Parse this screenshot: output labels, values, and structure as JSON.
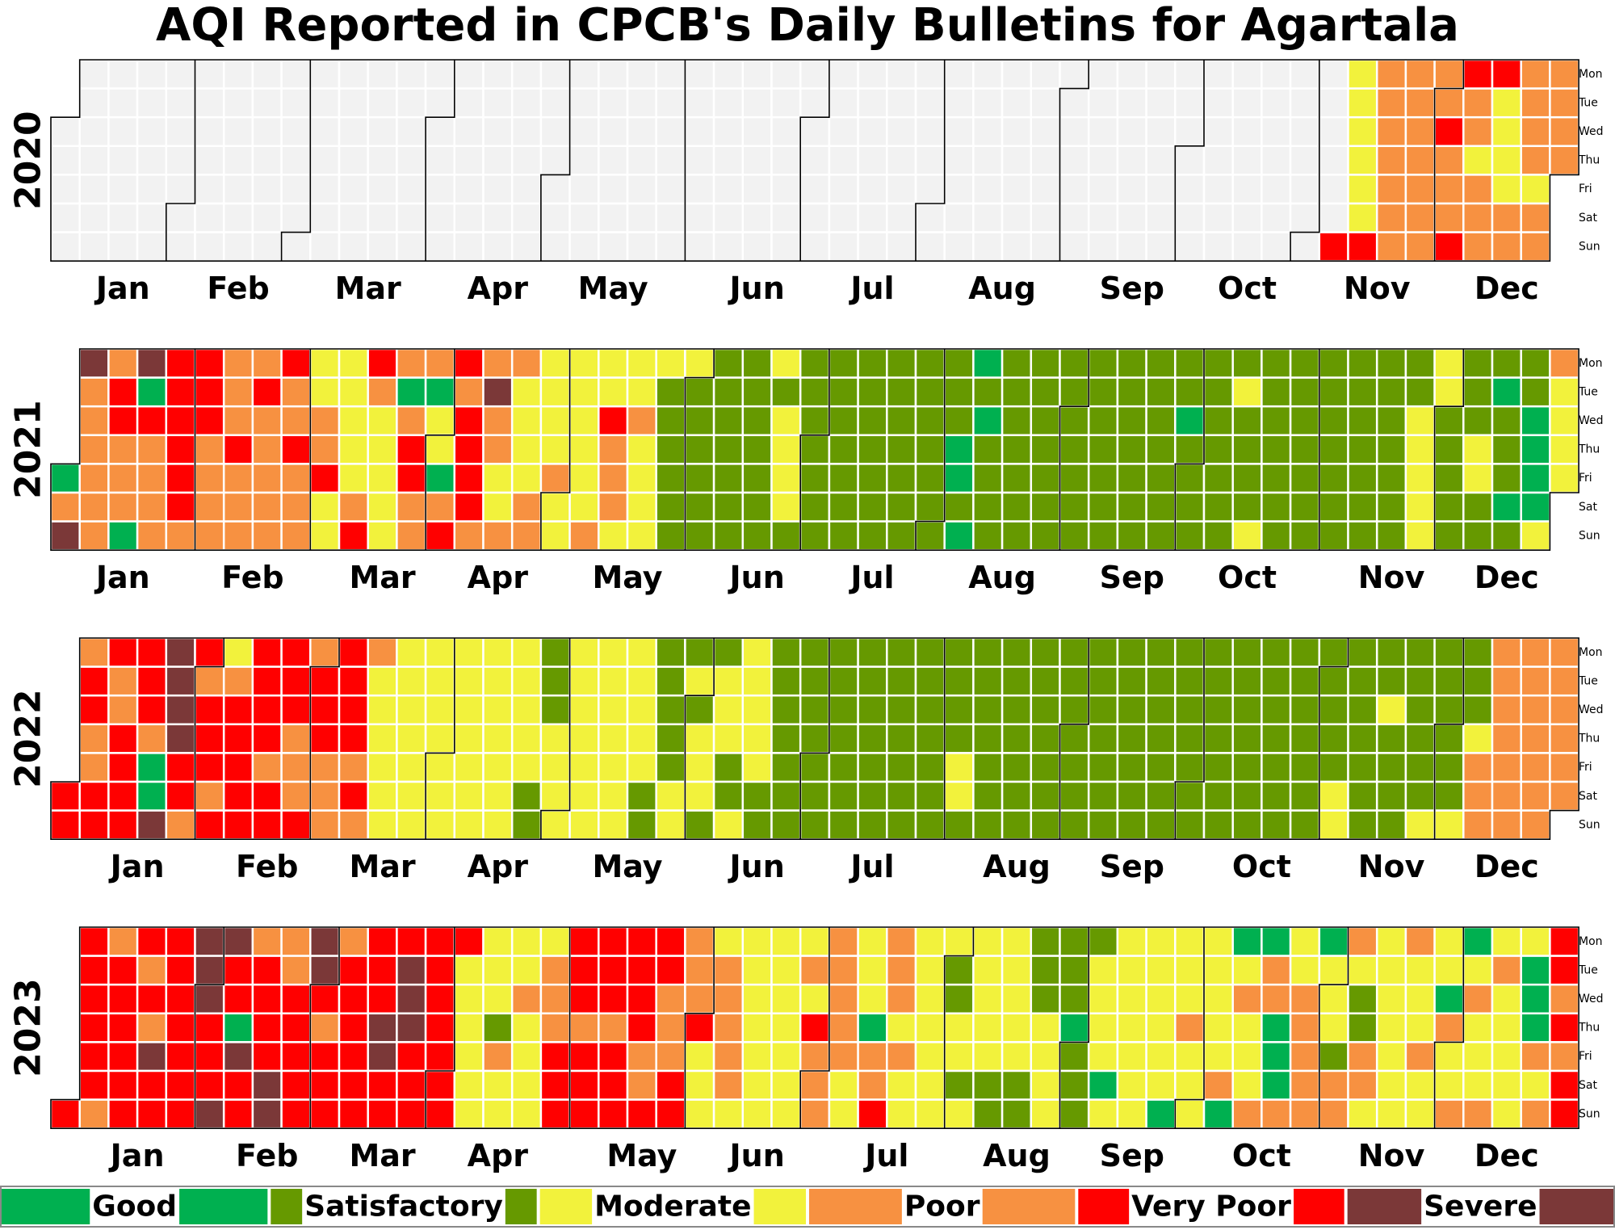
{
  "chart_data": {
    "type": "heatmap",
    "title": "AQI Reported in CPCB's Daily Bulletins for Agartala",
    "years": [
      "2020",
      "2021",
      "2022",
      "2023"
    ],
    "month_labels": [
      "Jan",
      "Feb",
      "Mar",
      "Apr",
      "May",
      "Jun",
      "Jul",
      "Aug",
      "Sep",
      "Oct",
      "Nov",
      "Dec"
    ],
    "weekday_labels": [
      "Mon",
      "Tue",
      "Wed",
      "Thu",
      "Fri",
      "Sat",
      "Sun"
    ],
    "categories": [
      {
        "key": "G",
        "label": "Good",
        "color": "#00b050"
      },
      {
        "key": "S",
        "label": "Satisfactory",
        "color": "#669900"
      },
      {
        "key": "M",
        "label": "Moderate",
        "color": "#f2f23c"
      },
      {
        "key": "P",
        "label": "Poor",
        "color": "#f79141"
      },
      {
        "key": "V",
        "label": "Very Poor",
        "color": "#ff0000"
      },
      {
        "key": "X",
        "label": "Severe",
        "color": "#7b3838"
      }
    ],
    "no_data_color": "#f2f2f2",
    "daily_category_codes": {
      "2020": "------------------------------------------------------------------------------------------------------------------------------------------------------------------------------------------------------------------------------------------------------------------------------------------------------------------------VMMMMMMVPPPPPPPPPPPPPPPPVPPPVVPPMPPPVMMMMPPPPPPMPPPPPPPPVPPPPPPPPPPMMMMPPPPPPVGGMP-",
      "2021": "GPXXPPPPPPPVVPPPGXGVPPPPVVVVVVPVVVPPPPPPPVPPPPVPPPPPVPPVPPPMMPPVMMMMMMMPVVPMMMMMPGPVVPPPGMMGPVVPVVVVPPXPPMMPPMMMMPPMMMMPMMMMMMMMPMMVPPPMMMPMMMMMSSSSSSMSSSSSSSSSSSSSSSSSSSSMSMMMMSSSSSSSSSSSSSSSSSSSSSSSSSSSSSSSSSSSSSSSGGSGGSGSSSSSSSSSSSSSSSSSSSSSSSSSSSSSSSSSSSSSSSSSSSSSSSSGSSSSSSSSSSSSMSSSSMSSSSSSSSSSSSSSSSSSSSSSSSSSSSSSSSSSSSSMMMMMMMSSSSSSSSMMSSSGSSSGSSSGGGGMPMMMMMMMMMPSSSMMMMMMMMMPPPPPPPPPPPPVPPMPPPPPVPPPPPPPPVVVPPPMPPPPPMPPPPMMPPPPPPPPPPPPPPPPPMMMMMPPPPPPVPPPPPVPPPPPPPP",
      "2022": "VVPVVPPVVVPPVVVVVVVPGGXXXXXVVPVPVVVPVMPVVVVVVVVVPVVVVVPPPVPVVVPPPVVVVPVPPMMMMMMMMMMMMMMMMMMMMMMMMMMMMMMMMMMMMMMMSSSSSMMMMMMMMMMMMMMMMMMMMMMMSSSSSSSMMSMSMMMSSMMMSSMMMMMMSSSSSSSSSSSSSSSSSSSSSSSSSSSSSSSSSSSSSSSSSSSSSSSSMMSSSSSSSSSSSSSSSSSSSSSSSSSSSSSSSSSSSSSSSSSSSSSSSSSSSSSSSSSSSSSSSSSSSSSSSSSSSSSSSSSSSSSSSSSSMMSSSSSSSSSMSSSSSSSSSSMSSSSSSMSSSMPPPPPPPPPPPPPPPPPPPPPPPPPPPPPPPPPPPPPPPPPPPPPPPPPPPPPPPPPPPPPPPPPPPPPPPPPPPPPPPPPPPPPPPPPPPPPPPPPPPPPPPPPPPPPPPPPPPPPPPPPPPPPPPVVVVVVVVVVVVVVVVVXXVVVVVVVVVVVVVVVVVV",
      "2023": "VVVVVVVPPVVVVVVVPVPXVVVVVVVVVXXXVVVXXVVGXVVPVVVVXXPPVVVVVXXVPVVVPVVVVVVVVVXXVVVXXXVVVVVVVVVVVMMMMMMMMMSPMMMMPMMMMMPPPVVVVVVPVVVVVVPVVVVVVVPPVVVPPPVVPPPVMMMMPPPPPMMMMMMMMMMMMMMMMPMVPPPPPPPPMMMMMGPPVPPPMPMMMMMMMMMMSSMMSMMMMMMSSMMMMMSSSSSMMMMSSSGSSSSMMMMGMMMMMMMMMMMMMMGMMMPMMMMMMMMPGGMPMMMPGPPGGGPMMPPPPPGMMMSPPPMSSPPMMMMMMMMPMMMPMMMMGPMMPGMPMMMPMPMMMMMMGGGPMPVVPVPVVVPVPPVPPVVPPPPPPPPPPVPVPVPPPGMMVPVVVVVVVVVVVVVVVVVVVVGGVMVPMPPVMVPPPPPPPVVVVPPPPPMMPPVVMPPVVVVVVVPVGMVMVPPPPMV"
    },
    "legend_labels": [
      "Good",
      "Satisfactory",
      "Moderate",
      "Poor",
      "Very Poor",
      "Severe"
    ]
  }
}
